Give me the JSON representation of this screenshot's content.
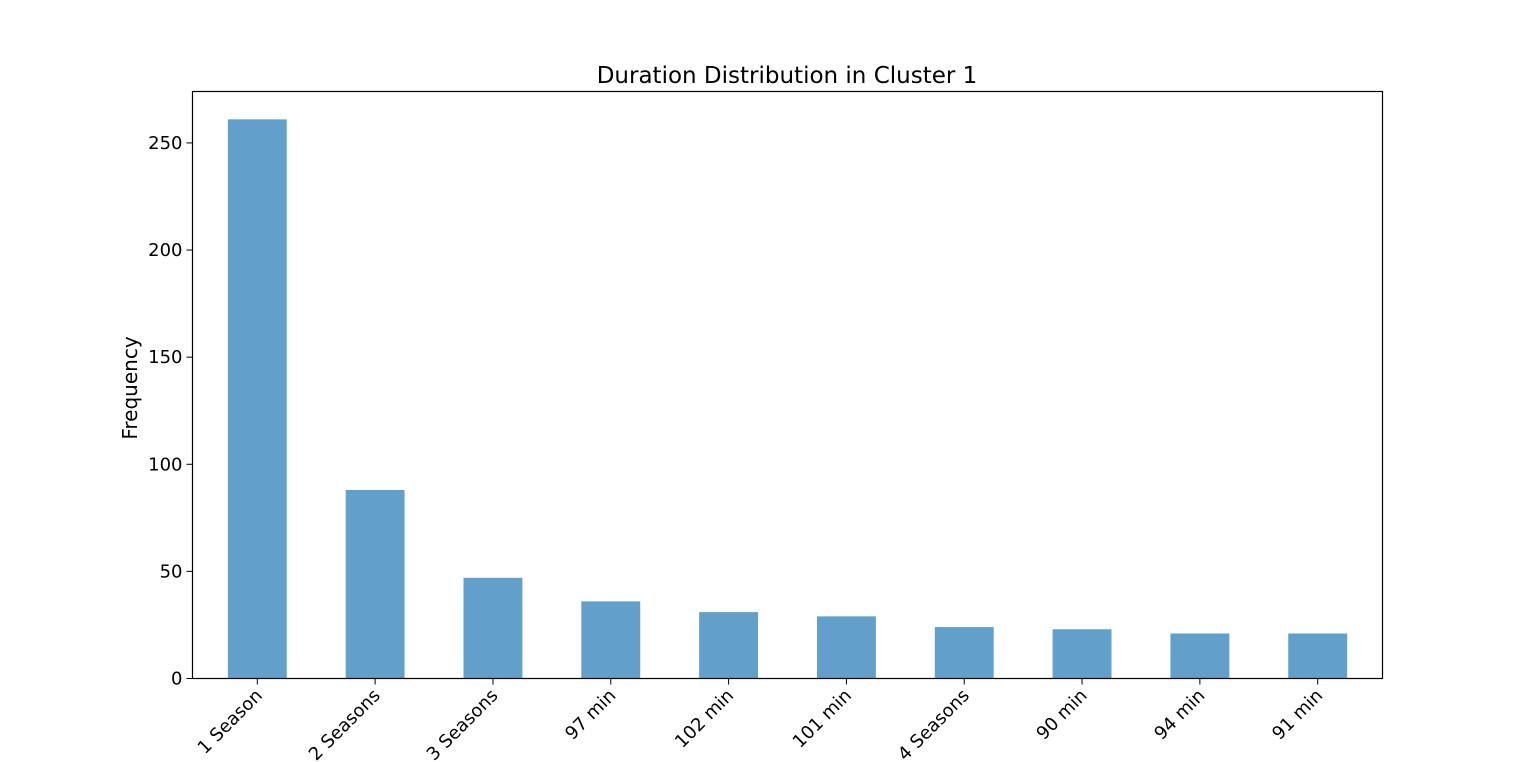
{
  "chart_data": {
    "type": "bar",
    "title": "Duration Distribution in Cluster 1",
    "xlabel": "",
    "ylabel": "Frequency",
    "categories": [
      "1 Season",
      "2 Seasons",
      "3 Seasons",
      "97 min",
      "102 min",
      "101 min",
      "4 Seasons",
      "90 min",
      "94 min",
      "91 min"
    ],
    "values": [
      261,
      88,
      47,
      36,
      31,
      29,
      24,
      23,
      21,
      21
    ],
    "ylim": [
      0,
      274
    ],
    "yticks": [
      0,
      50,
      100,
      150,
      200,
      250
    ],
    "bar_color": "#62a0ca",
    "grid": false,
    "legend": "none"
  }
}
